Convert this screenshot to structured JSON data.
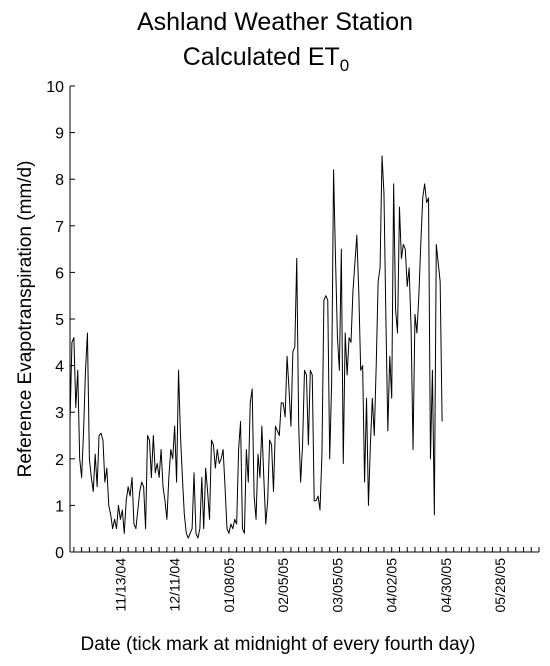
{
  "chart_data": {
    "type": "line",
    "title_line1": "Ashland Weather Station",
    "title_line2_main": "Calculated ET",
    "title_line2_sub": "0",
    "xlabel": "Date (tick mark at midnight of every fourth day)",
    "ylabel": "Reference Evapotranspiration (mm/d)",
    "ylim": [
      0,
      10
    ],
    "yticks": [
      "0",
      "1",
      "2",
      "3",
      "4",
      "5",
      "6",
      "7",
      "8",
      "9",
      "10"
    ],
    "xlim": [
      "2004-10-18",
      "2005-06-17"
    ],
    "xtick_labels": [
      {
        "date": "2004-11-13",
        "label": "11/13/04"
      },
      {
        "date": "2004-12-11",
        "label": "12/11/04"
      },
      {
        "date": "2005-01-08",
        "label": "01/08/05"
      },
      {
        "date": "2005-02-05",
        "label": "02/05/05"
      },
      {
        "date": "2005-03-05",
        "label": "03/05/05"
      },
      {
        "date": "2005-04-02",
        "label": "04/02/05"
      },
      {
        "date": "2005-04-30",
        "label": "04/30/05"
      },
      {
        "date": "2005-05-28",
        "label": "05/28/05"
      }
    ],
    "minor_tick_interval_days": 4,
    "grid": false,
    "series": [
      {
        "color": "#000000",
        "points": [
          [
            "2004-10-18",
            2.8
          ],
          [
            "2004-10-19",
            4.5
          ],
          [
            "2004-10-20",
            4.6
          ],
          [
            "2004-10-21",
            3.1
          ],
          [
            "2004-10-22",
            3.9
          ],
          [
            "2004-10-23",
            2.0
          ],
          [
            "2004-10-24",
            1.6
          ],
          [
            "2004-10-25",
            2.6
          ],
          [
            "2004-10-26",
            3.9
          ],
          [
            "2004-10-27",
            4.7
          ],
          [
            "2004-10-28",
            2.0
          ],
          [
            "2004-10-29",
            1.6
          ],
          [
            "2004-10-30",
            1.3
          ],
          [
            "2004-10-31",
            2.1
          ],
          [
            "2004-11-01",
            1.4
          ],
          [
            "2004-11-02",
            2.5
          ],
          [
            "2004-11-03",
            2.55
          ],
          [
            "2004-11-04",
            2.4
          ],
          [
            "2004-11-05",
            1.5
          ],
          [
            "2004-11-06",
            1.8
          ],
          [
            "2004-11-07",
            1.0
          ],
          [
            "2004-11-08",
            0.8
          ],
          [
            "2004-11-09",
            0.5
          ],
          [
            "2004-11-10",
            0.7
          ],
          [
            "2004-11-11",
            0.5
          ],
          [
            "2004-11-12",
            1.0
          ],
          [
            "2004-11-13",
            0.7
          ],
          [
            "2004-11-14",
            0.9
          ],
          [
            "2004-11-15",
            0.4
          ],
          [
            "2004-11-16",
            1.1
          ],
          [
            "2004-11-17",
            1.4
          ],
          [
            "2004-11-18",
            1.2
          ],
          [
            "2004-11-19",
            1.6
          ],
          [
            "2004-11-20",
            0.6
          ],
          [
            "2004-11-21",
            0.5
          ],
          [
            "2004-11-22",
            0.9
          ],
          [
            "2004-11-23",
            1.3
          ],
          [
            "2004-11-24",
            1.5
          ],
          [
            "2004-11-25",
            1.4
          ],
          [
            "2004-11-26",
            0.5
          ],
          [
            "2004-11-27",
            2.5
          ],
          [
            "2004-11-28",
            2.4
          ],
          [
            "2004-11-29",
            1.6
          ],
          [
            "2004-11-30",
            2.5
          ],
          [
            "2004-12-01",
            1.7
          ],
          [
            "2004-12-02",
            1.9
          ],
          [
            "2004-12-03",
            1.6
          ],
          [
            "2004-12-04",
            2.2
          ],
          [
            "2004-12-05",
            1.4
          ],
          [
            "2004-12-06",
            1.1
          ],
          [
            "2004-12-07",
            0.7
          ],
          [
            "2004-12-08",
            1.6
          ],
          [
            "2004-12-09",
            2.2
          ],
          [
            "2004-12-10",
            2.0
          ],
          [
            "2004-12-11",
            2.7
          ],
          [
            "2004-12-12",
            1.5
          ],
          [
            "2004-12-13",
            3.9
          ],
          [
            "2004-12-14",
            2.5
          ],
          [
            "2004-12-15",
            1.6
          ],
          [
            "2004-12-16",
            0.8
          ],
          [
            "2004-12-17",
            0.4
          ],
          [
            "2004-12-18",
            0.3
          ],
          [
            "2004-12-19",
            0.4
          ],
          [
            "2004-12-20",
            0.5
          ],
          [
            "2004-12-21",
            1.7
          ],
          [
            "2004-12-22",
            0.4
          ],
          [
            "2004-12-23",
            0.3
          ],
          [
            "2004-12-24",
            0.5
          ],
          [
            "2004-12-25",
            1.6
          ],
          [
            "2004-12-26",
            0.5
          ],
          [
            "2004-12-27",
            1.8
          ],
          [
            "2004-12-28",
            1.3
          ],
          [
            "2004-12-29",
            0.7
          ],
          [
            "2004-12-30",
            2.4
          ],
          [
            "2004-12-31",
            2.3
          ],
          [
            "2005-01-01",
            1.8
          ],
          [
            "2005-01-02",
            2.2
          ],
          [
            "2005-01-03",
            1.9
          ],
          [
            "2005-01-04",
            2.0
          ],
          [
            "2005-01-05",
            2.2
          ],
          [
            "2005-01-06",
            1.4
          ],
          [
            "2005-01-07",
            0.5
          ],
          [
            "2005-01-08",
            0.4
          ],
          [
            "2005-01-09",
            0.6
          ],
          [
            "2005-01-10",
            0.5
          ],
          [
            "2005-01-11",
            0.7
          ],
          [
            "2005-01-12",
            0.6
          ],
          [
            "2005-01-13",
            2.2
          ],
          [
            "2005-01-14",
            2.8
          ],
          [
            "2005-01-15",
            0.5
          ],
          [
            "2005-01-16",
            0.4
          ],
          [
            "2005-01-17",
            2.2
          ],
          [
            "2005-01-18",
            1.5
          ],
          [
            "2005-01-19",
            3.2
          ],
          [
            "2005-01-20",
            3.5
          ],
          [
            "2005-01-21",
            1.2
          ],
          [
            "2005-01-22",
            0.7
          ],
          [
            "2005-01-23",
            2.1
          ],
          [
            "2005-01-24",
            1.6
          ],
          [
            "2005-01-25",
            2.7
          ],
          [
            "2005-01-26",
            1.6
          ],
          [
            "2005-01-27",
            0.6
          ],
          [
            "2005-01-28",
            1.1
          ],
          [
            "2005-01-29",
            2.4
          ],
          [
            "2005-01-30",
            2.3
          ],
          [
            "2005-01-31",
            1.3
          ],
          [
            "2005-02-01",
            2.7
          ],
          [
            "2005-02-02",
            2.6
          ],
          [
            "2005-02-03",
            2.5
          ],
          [
            "2005-02-04",
            3.2
          ],
          [
            "2005-02-05",
            3.2
          ],
          [
            "2005-02-06",
            2.9
          ],
          [
            "2005-02-07",
            4.2
          ],
          [
            "2005-02-08",
            3.5
          ],
          [
            "2005-02-09",
            2.7
          ],
          [
            "2005-02-10",
            4.3
          ],
          [
            "2005-02-11",
            4.4
          ],
          [
            "2005-02-12",
            6.3
          ],
          [
            "2005-02-13",
            2.7
          ],
          [
            "2005-02-14",
            1.5
          ],
          [
            "2005-02-15",
            2.3
          ],
          [
            "2005-02-16",
            3.9
          ],
          [
            "2005-02-17",
            3.8
          ],
          [
            "2005-02-18",
            2.3
          ],
          [
            "2005-02-19",
            3.9
          ],
          [
            "2005-02-20",
            3.8
          ],
          [
            "2005-02-21",
            1.1
          ],
          [
            "2005-02-22",
            1.1
          ],
          [
            "2005-02-23",
            1.2
          ],
          [
            "2005-02-24",
            0.9
          ],
          [
            "2005-02-25",
            2.1
          ],
          [
            "2005-02-26",
            5.4
          ],
          [
            "2005-02-27",
            5.5
          ],
          [
            "2005-02-28",
            5.4
          ],
          [
            "2005-03-01",
            2.0
          ],
          [
            "2005-03-02",
            3.6
          ],
          [
            "2005-03-03",
            8.2
          ],
          [
            "2005-03-04",
            6.3
          ],
          [
            "2005-03-05",
            4.6
          ],
          [
            "2005-03-06",
            3.9
          ],
          [
            "2005-03-07",
            6.5
          ],
          [
            "2005-03-08",
            1.9
          ],
          [
            "2005-03-09",
            4.7
          ],
          [
            "2005-03-10",
            3.8
          ],
          [
            "2005-03-11",
            4.6
          ],
          [
            "2005-03-12",
            4.5
          ],
          [
            "2005-03-13",
            5.6
          ],
          [
            "2005-03-14",
            6.2
          ],
          [
            "2005-03-15",
            6.8
          ],
          [
            "2005-03-16",
            5.6
          ],
          [
            "2005-03-17",
            3.9
          ],
          [
            "2005-03-18",
            4.0
          ],
          [
            "2005-03-19",
            1.5
          ],
          [
            "2005-03-20",
            3.3
          ],
          [
            "2005-03-21",
            1.0
          ],
          [
            "2005-03-22",
            2.3
          ],
          [
            "2005-03-23",
            3.3
          ],
          [
            "2005-03-24",
            2.5
          ],
          [
            "2005-03-25",
            4.0
          ],
          [
            "2005-03-26",
            5.8
          ],
          [
            "2005-03-27",
            6.1
          ],
          [
            "2005-03-28",
            8.5
          ],
          [
            "2005-03-29",
            7.7
          ],
          [
            "2005-03-30",
            5.0
          ],
          [
            "2005-03-31",
            2.6
          ],
          [
            "2005-04-01",
            4.2
          ],
          [
            "2005-04-02",
            3.3
          ],
          [
            "2005-04-03",
            7.9
          ],
          [
            "2005-04-04",
            5.2
          ],
          [
            "2005-04-05",
            4.7
          ],
          [
            "2005-04-06",
            7.4
          ],
          [
            "2005-04-07",
            6.3
          ],
          [
            "2005-04-08",
            6.6
          ],
          [
            "2005-04-09",
            6.5
          ],
          [
            "2005-04-10",
            5.7
          ],
          [
            "2005-04-11",
            6.1
          ],
          [
            "2005-04-12",
            4.8
          ],
          [
            "2005-04-13",
            2.2
          ],
          [
            "2005-04-14",
            5.1
          ],
          [
            "2005-04-15",
            4.7
          ],
          [
            "2005-04-16",
            5.5
          ],
          [
            "2005-04-17",
            6.6
          ],
          [
            "2005-04-18",
            7.6
          ],
          [
            "2005-04-19",
            7.9
          ],
          [
            "2005-04-20",
            7.5
          ],
          [
            "2005-04-21",
            7.6
          ],
          [
            "2005-04-22",
            2.0
          ],
          [
            "2005-04-23",
            3.9
          ],
          [
            "2005-04-24",
            0.8
          ],
          [
            "2005-04-25",
            6.6
          ],
          [
            "2005-04-26",
            6.2
          ],
          [
            "2005-04-27",
            5.8
          ],
          [
            "2005-04-28",
            2.8
          ]
        ]
      }
    ]
  }
}
